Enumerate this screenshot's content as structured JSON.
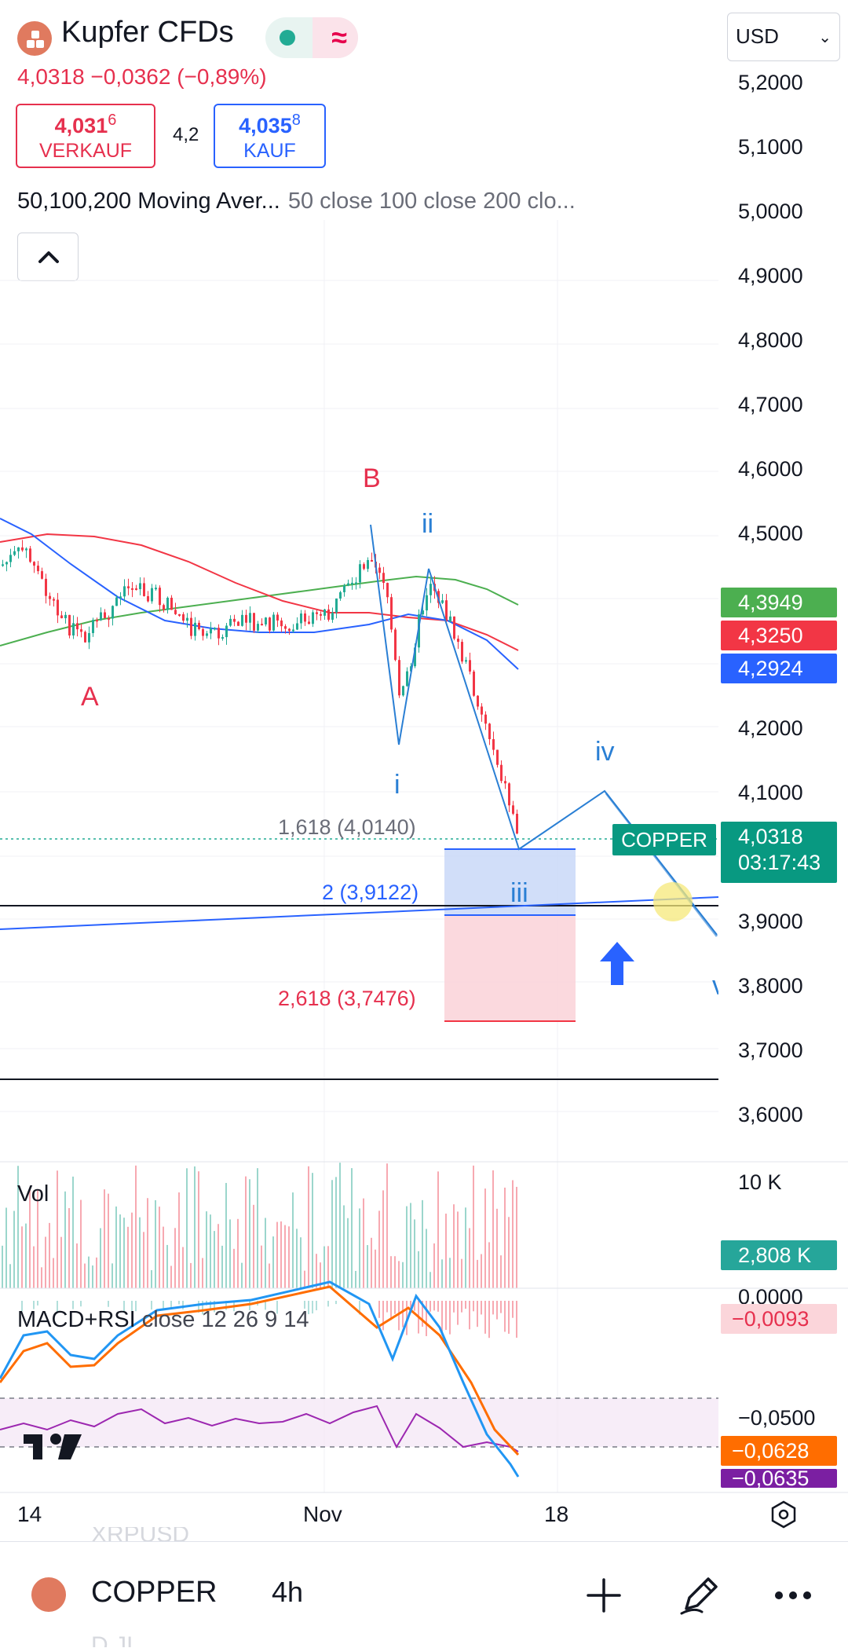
{
  "header": {
    "title": "Kupfer CFDs",
    "price_change": "4,0318  −0,0362 (−0,89%)",
    "sell": {
      "price_main": "4,031",
      "price_sup": "6",
      "label": "VERKAUF"
    },
    "spread": "4,2",
    "buy": {
      "price_main": "4,035",
      "price_sup": "8",
      "label": "KAUF"
    },
    "currency": "USD"
  },
  "indicator_line": {
    "name": "50,100,200 Moving Aver...",
    "params": "50 close 100 close 200 clo..."
  },
  "price_axis": {
    "labels": [
      "5,2000",
      "5,1000",
      "5,0000",
      "4,9000",
      "4,8000",
      "4,7000",
      "4,6000",
      "4,5000",
      "4,2000",
      "4,1000",
      "3,9000",
      "3,8000",
      "3,7000",
      "3,6000"
    ],
    "badges": {
      "ma_green": "4,3949",
      "ma_red": "4,3250",
      "ma_blue": "4,2924",
      "last_price": "4,0318",
      "countdown": "03:17:43"
    }
  },
  "chart_labels": {
    "symbol_tag": "COPPER",
    "waves": {
      "A": "A",
      "B": "B",
      "i": "i",
      "ii": "ii",
      "iii": "iii",
      "iv": "iv",
      "v": "v"
    },
    "fib": {
      "f1618": "1,618 (4,0140)",
      "f2": "2 (3,9122)",
      "f2618": "2,618 (3,7476)"
    }
  },
  "volume_pane": {
    "label": "Vol",
    "axis_top": "10 K",
    "badge": "2,808 K"
  },
  "macd_pane": {
    "label": "MACD+RSI",
    "params": "close 12 26 9 14",
    "zero": "0,0000",
    "badge_hist": "−0,0093",
    "level": "−0,0500",
    "badge_signal": "−0,0628",
    "badge_macd": "−0,0635"
  },
  "time_axis": {
    "labels": [
      "14",
      "Nov",
      "18"
    ]
  },
  "bottom_bar": {
    "symbol": "COPPER",
    "timeframe": "4h",
    "ghost_top": "XRPUSD",
    "ghost_bottom": "D.JI"
  },
  "colors": {
    "up": "#22ab94",
    "down": "#f23645",
    "ma50": "#4caf50",
    "ma100": "#f23645",
    "ma200": "#2962ff",
    "wave_blue": "#2a7fd4",
    "wave_red": "#e6304e"
  }
}
